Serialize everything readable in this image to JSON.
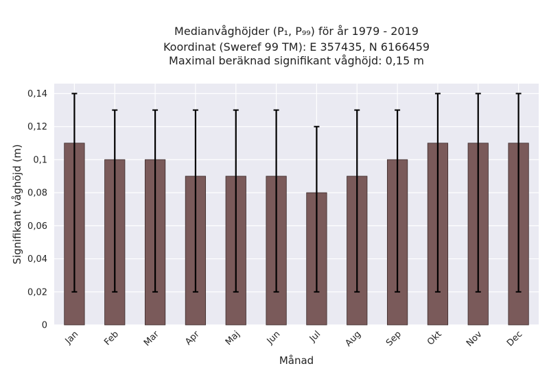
{
  "chart_data": {
    "type": "bar",
    "title_lines": [
      "Medianvåghöjder (P₁, P₉₉) för år 1979 - 2019",
      "Koordinat (Sweref 99 TM): E 357435, N 6166459",
      "Maximal beräknad signifikant våghöjd: 0,15 m"
    ],
    "xlabel": "Månad",
    "ylabel": "Signifikant våghöjd (m)",
    "categories": [
      "Jan",
      "Feb",
      "Mar",
      "Apr",
      "Maj",
      "Jun",
      "Jul",
      "Aug",
      "Sep",
      "Okt",
      "Nov",
      "Dec"
    ],
    "values": [
      0.11,
      0.1,
      0.1,
      0.09,
      0.09,
      0.09,
      0.08,
      0.09,
      0.1,
      0.11,
      0.11,
      0.11
    ],
    "error_low": [
      0.02,
      0.02,
      0.02,
      0.02,
      0.02,
      0.02,
      0.02,
      0.02,
      0.02,
      0.02,
      0.02,
      0.02
    ],
    "error_high": [
      0.14,
      0.13,
      0.13,
      0.13,
      0.13,
      0.13,
      0.12,
      0.13,
      0.13,
      0.14,
      0.14,
      0.14
    ],
    "ylim": [
      0,
      0.146
    ],
    "yticks": [
      0,
      0.02,
      0.04,
      0.06,
      0.08,
      0.1,
      0.12,
      0.14
    ],
    "ytick_labels": [
      "0",
      "0,02",
      "0,04",
      "0,06",
      "0,08",
      "0,1",
      "0,12",
      "0,14"
    ],
    "grid": true,
    "colors": {
      "bar": "#7a5a5a",
      "bar_edge": "#3a2a2a",
      "error": "#000000",
      "plot_bg": "#eaeaf2",
      "grid": "#ffffff"
    }
  }
}
